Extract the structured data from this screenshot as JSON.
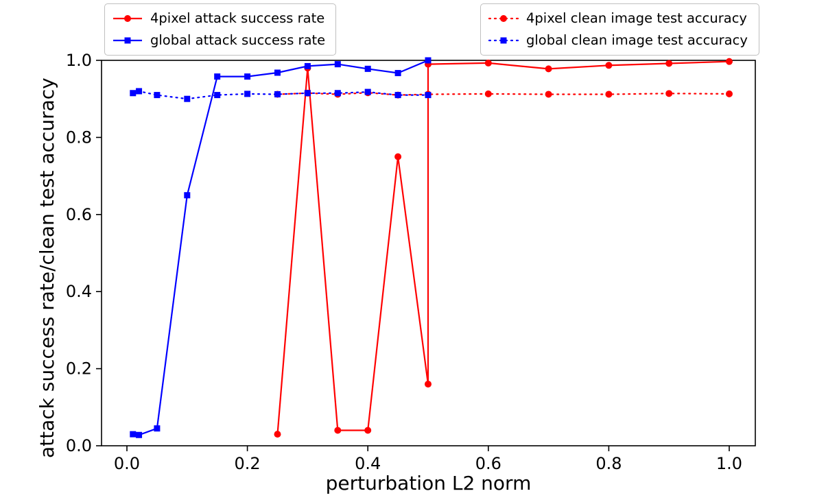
{
  "figure": {
    "background": "#ffffff"
  },
  "chart_data": {
    "type": "line",
    "title": "",
    "grid": false,
    "legend_position": "two boxes above plot, left and right",
    "x_axis": {
      "label": "perturbation L2 norm",
      "range": [
        0,
        1
      ],
      "tick_values": [
        0,
        0.2,
        0.4,
        0.6,
        0.8,
        1
      ],
      "tick_labels": [
        "0.0",
        "0.2",
        "0.4",
        "0.6",
        "0.8",
        "1.0"
      ]
    },
    "y_axis": {
      "label": "attack success rate/clean test accuracy",
      "range": [
        0,
        1
      ],
      "tick_values": [
        0,
        0.2,
        0.4,
        0.6,
        0.8,
        1
      ],
      "tick_labels": [
        "0.0",
        "0.2",
        "0.4",
        "0.6",
        "0.8",
        "1.0"
      ]
    },
    "series": [
      {
        "name": "4pixel attack success rate",
        "color": "#ff0000",
        "line_style": "solid",
        "marker": "circle",
        "x": [
          0.25,
          0.3,
          0.35,
          0.4,
          0.45,
          0.5,
          0.5,
          0.6,
          0.7,
          0.8,
          0.9,
          1.0
        ],
        "y": [
          0.03,
          0.98,
          0.04,
          0.04,
          0.75,
          0.16,
          0.99,
          0.993,
          0.978,
          0.987,
          0.992,
          0.997
        ]
      },
      {
        "name": "global attack success rate",
        "color": "#0000ff",
        "line_style": "solid",
        "marker": "square",
        "x": [
          0.01,
          0.02,
          0.05,
          0.1,
          0.15,
          0.2,
          0.25,
          0.3,
          0.35,
          0.4,
          0.45,
          0.5
        ],
        "y": [
          0.03,
          0.028,
          0.045,
          0.65,
          0.958,
          0.958,
          0.968,
          0.985,
          0.99,
          0.978,
          0.967,
          1.0
        ]
      },
      {
        "name": "4pixel clean image test accuracy",
        "color": "#ff0000",
        "line_style": "dotted",
        "marker": "circle",
        "x": [
          0.25,
          0.3,
          0.35,
          0.4,
          0.45,
          0.5,
          0.6,
          0.7,
          0.8,
          0.9,
          1.0
        ],
        "y": [
          0.912,
          0.915,
          0.912,
          0.916,
          0.91,
          0.912,
          0.913,
          0.912,
          0.912,
          0.914,
          0.913
        ]
      },
      {
        "name": "global clean image test accuracy",
        "color": "#0000ff",
        "line_style": "dotted",
        "marker": "square",
        "x": [
          0.01,
          0.02,
          0.05,
          0.1,
          0.15,
          0.2,
          0.25,
          0.3,
          0.35,
          0.4,
          0.45,
          0.5
        ],
        "y": [
          0.915,
          0.92,
          0.91,
          0.9,
          0.91,
          0.913,
          0.912,
          0.915,
          0.915,
          0.918,
          0.91,
          0.91
        ]
      }
    ]
  }
}
